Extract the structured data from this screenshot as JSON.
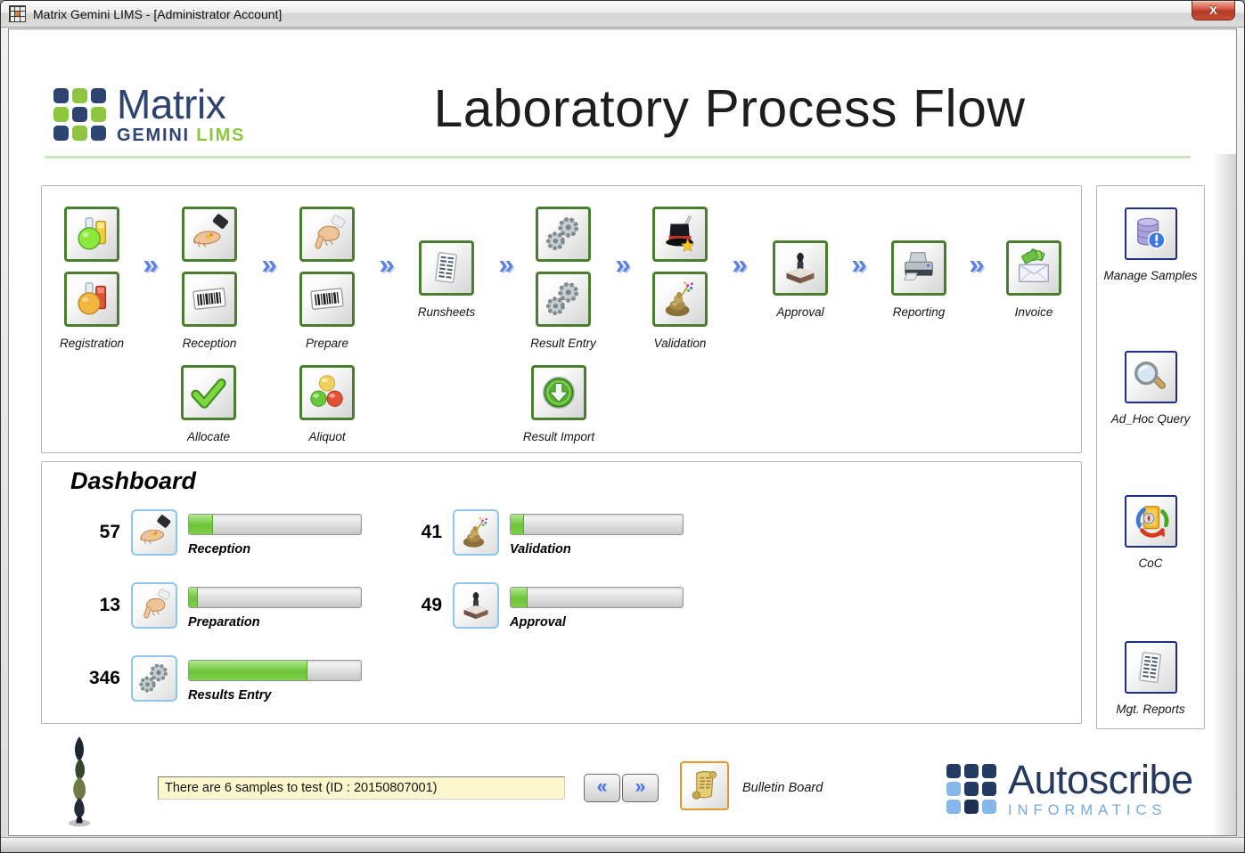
{
  "window": {
    "title": "Matrix Gemini LIMS - [Administrator Account]",
    "close_label": "X"
  },
  "header": {
    "logo": {
      "brand": "Matrix",
      "gemini": "GEMINI",
      "lims": "LIMS"
    },
    "title": "Laboratory Process Flow"
  },
  "ui": {
    "chevron": "»",
    "nav_prev": "«",
    "nav_next": "»"
  },
  "flow": {
    "columns": [
      {
        "label": "Registration",
        "icons": [
          "sample-flasks-green-icon",
          "sample-flasks-red-icon"
        ]
      },
      {
        "label": "Reception",
        "icons": [
          "open-hand-icon",
          "barcode-icon"
        ]
      },
      {
        "label": "Prepare",
        "icons": [
          "pointing-hand-icon",
          "barcode-icon"
        ]
      },
      {
        "label": "Runsheets",
        "icons": [
          "runsheet-document-icon"
        ]
      },
      {
        "label": "Result Entry",
        "icons": [
          "gears-icon",
          "gears-icon"
        ]
      },
      {
        "label": "Validation",
        "icons": [
          "magic-hat-icon",
          "gold-wand-icon"
        ]
      },
      {
        "label": "Approval",
        "icons": [
          "rubber-stamp-icon"
        ]
      },
      {
        "label": "Reporting",
        "icons": [
          "printer-icon"
        ]
      },
      {
        "label": "Invoice",
        "icons": [
          "money-envelope-icon"
        ]
      }
    ],
    "secondary": [
      {
        "label": "Allocate",
        "icon": "green-check-icon"
      },
      {
        "label": "Aliquot",
        "icon": "colored-balls-icon"
      },
      {
        "label": "Result Import",
        "icon": "green-download-icon"
      }
    ]
  },
  "sidebar": {
    "items": [
      {
        "label": "Manage Samples",
        "icon": "database-icon"
      },
      {
        "label": "Ad_Hoc Query",
        "icon": "magnifier-icon"
      },
      {
        "label": "CoC",
        "icon": "coc-compass-icon"
      },
      {
        "label": "Mgt. Reports",
        "icon": "report-document-icon"
      }
    ]
  },
  "dashboard": {
    "title": "Dashboard",
    "items": [
      {
        "count": "57",
        "label": "Reception",
        "percent": 14,
        "icon": "open-hand-icon"
      },
      {
        "count": "13",
        "label": "Preparation",
        "percent": 5,
        "icon": "pointing-hand-icon"
      },
      {
        "count": "346",
        "label": "Results Entry",
        "percent": 69,
        "icon": "gears-icon"
      },
      {
        "count": "41",
        "label": "Validation",
        "percent": 8,
        "icon": "gold-wand-icon"
      },
      {
        "count": "49",
        "label": "Approval",
        "percent": 10,
        "icon": "rubber-stamp-icon"
      }
    ]
  },
  "footer": {
    "status_message": "There are 6 samples to test (ID : 20150807001)",
    "bulletin_label": "Bulletin Board",
    "brand": "Autoscribe",
    "brand_sub": "INFORMATICS"
  },
  "colors": {
    "flow_border_green": "#4a7e2c",
    "sidebar_border_navy": "#1d2d8a",
    "dashboard_border_blue": "#8ec7ee",
    "bulletin_border_orange": "#e0992c",
    "chevron_blue": "#5b82de",
    "progress_green": "#6cc437",
    "status_field_yellow": "#fcf7cd",
    "close_button_red": "#b23a27",
    "matrix_navy": "#2d4470",
    "matrix_green": "#8cc63f",
    "autoscribe_navy": "#243a63",
    "autoscribe_blue": "#85b8e8"
  }
}
